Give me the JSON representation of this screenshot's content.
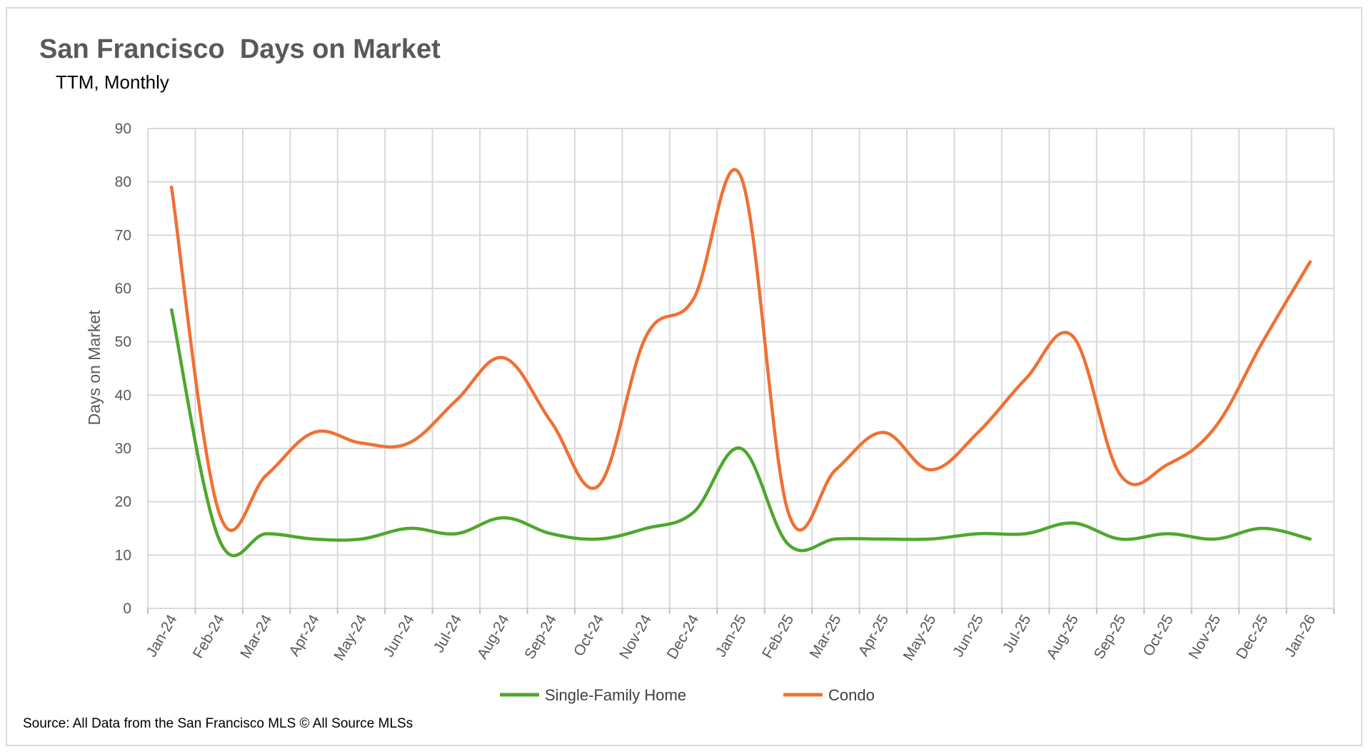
{
  "chart_data": {
    "type": "line",
    "title": "San Francisco  Days on Market",
    "subtitle": "TTM, Monthly",
    "ylabel": "Days on Market",
    "xlabel": "",
    "ylim": [
      0,
      90
    ],
    "yticks": [
      0,
      10,
      20,
      30,
      40,
      50,
      60,
      70,
      80,
      90
    ],
    "grid": true,
    "legend_position": "bottom",
    "categories": [
      "Jan-24",
      "Feb-24",
      "Mar-24",
      "Apr-24",
      "May-24",
      "Jun-24",
      "Jul-24",
      "Aug-24",
      "Sep-24",
      "Oct-24",
      "Nov-24",
      "Dec-24",
      "Jan-25",
      "Feb-25",
      "Mar-25",
      "Apr-25",
      "May-25",
      "Jun-25",
      "Jul-25",
      "Aug-25",
      "Sep-25",
      "Oct-25",
      "Nov-25",
      "Dec-25",
      "Jan-26"
    ],
    "series": [
      {
        "name": "Single-Family Home",
        "color": "#4ea72e",
        "values": [
          56,
          13,
          14,
          13,
          13,
          15,
          14,
          17,
          14,
          13,
          15,
          18,
          30,
          12,
          13,
          13,
          13,
          14,
          14,
          16,
          13,
          14,
          13,
          15,
          13
        ]
      },
      {
        "name": "Condo",
        "color": "#f07033",
        "values": [
          79,
          18,
          25,
          33,
          31,
          31,
          39,
          47,
          35,
          23,
          51,
          58,
          81,
          18,
          26,
          33,
          26,
          33,
          43,
          51,
          25,
          27,
          34,
          50,
          65
        ]
      }
    ]
  },
  "source_text": "Source: All Data from the San Francisco MLS © All Source MLSs"
}
